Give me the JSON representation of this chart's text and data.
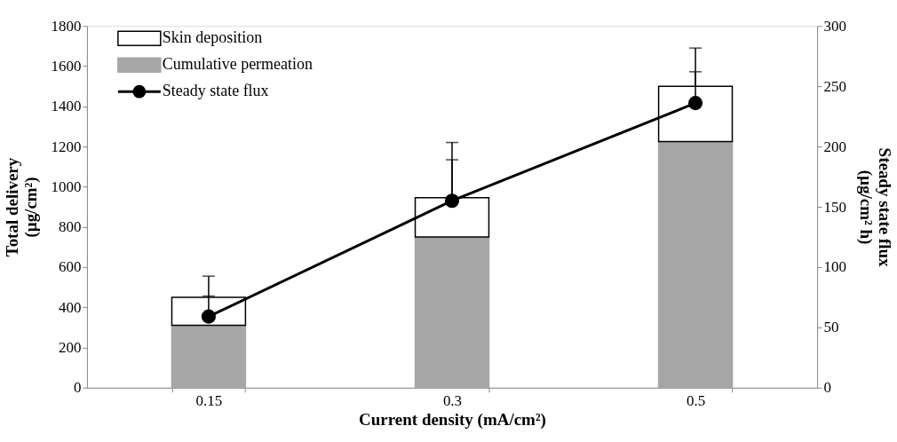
{
  "chart_data": {
    "type": "bar",
    "stacked": true,
    "xlabel": "Current density (mA/cm²)",
    "ylabel": "Total delivery\n(µg/cm²)",
    "y2label": "Steady state flux\n(µg/cm² h)",
    "categories": [
      "0.15",
      "0.3",
      "0.5"
    ],
    "series": [
      {
        "name": "Cumulative permeation",
        "color": "#a6a6a6",
        "values": [
          310,
          750,
          1225
        ]
      },
      {
        "name": "Skin deposition",
        "color": "#ffffff",
        "values": [
          140,
          195,
          275
        ],
        "errors": [
          [
            450,
            555
          ],
          [
            945,
            1220
          ],
          [
            1500,
            1690
          ]
        ]
      },
      {
        "name": "Steady state flux",
        "type": "line",
        "axis": "y2",
        "color": "#000000",
        "marker": "circle",
        "values": [
          59,
          155,
          236
        ],
        "errors": [
          [
            59,
            76
          ],
          [
            155,
            189
          ],
          [
            236,
            262
          ]
        ]
      }
    ],
    "ylim": [
      0,
      1800
    ],
    "yticks": [
      0,
      200,
      400,
      600,
      800,
      1000,
      1200,
      1400,
      1600,
      1800
    ],
    "y2lim": [
      0,
      300
    ],
    "y2ticks": [
      0,
      50,
      100,
      150,
      200,
      250,
      300
    ],
    "grid": false,
    "legend": "top left"
  }
}
